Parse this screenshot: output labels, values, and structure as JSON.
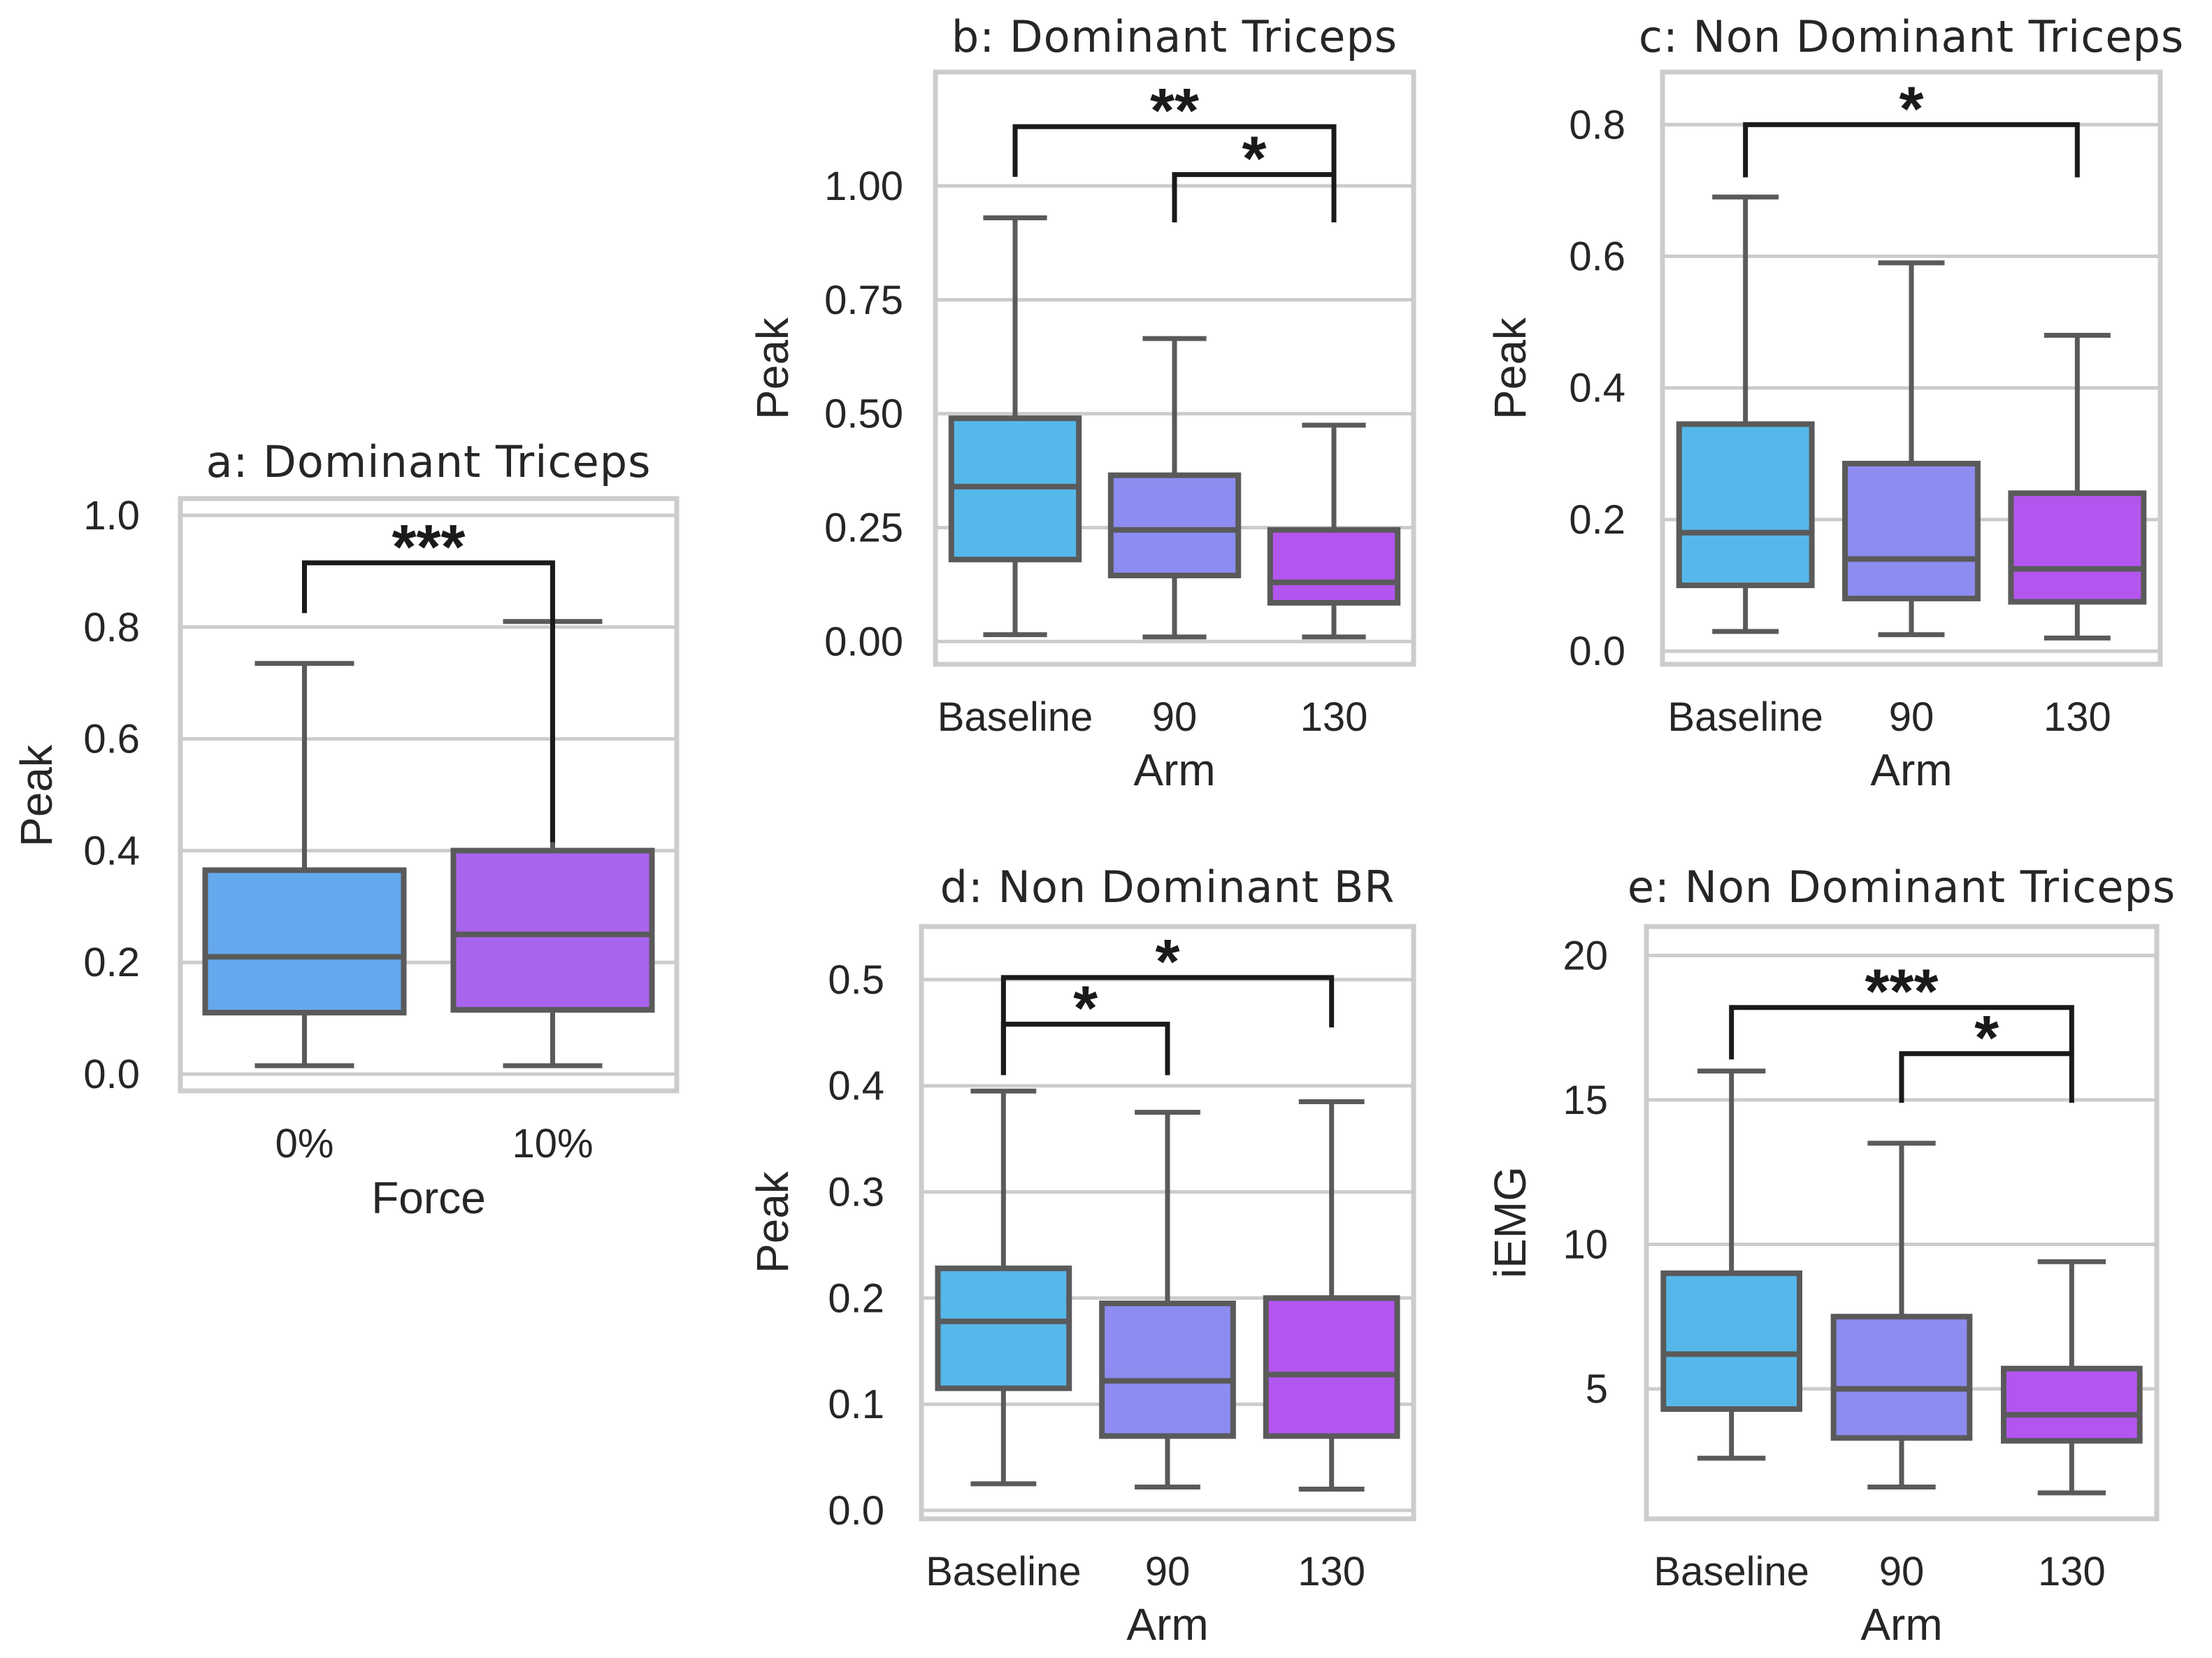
{
  "chart_data": [
    {
      "id": "a",
      "type": "box",
      "title": "a: Dominant Triceps",
      "xlabel": "Force",
      "ylabel": "Peak",
      "categories": [
        "0%",
        "10%"
      ],
      "colors": [
        "#64a8ee",
        "#a964ee"
      ],
      "ylim": [
        -0.03,
        1.03
      ],
      "yticks": [
        0.0,
        0.2,
        0.4,
        0.6,
        0.8,
        1.0
      ],
      "ytick_labels": [
        "0.0",
        "0.2",
        "0.4",
        "0.6",
        "0.8",
        "1.0"
      ],
      "boxes": [
        {
          "min": 0.015,
          "q1": 0.11,
          "median": 0.21,
          "q3": 0.365,
          "max": 0.735
        },
        {
          "min": 0.015,
          "q1": 0.115,
          "median": 0.25,
          "q3": 0.4,
          "max": 0.81
        }
      ],
      "significance": [
        {
          "from": 0,
          "to": 1,
          "label": "***",
          "y": 0.915,
          "left_end": 0.825,
          "right_end": 0.415
        }
      ]
    },
    {
      "id": "b",
      "type": "box",
      "title": "b: Dominant Triceps",
      "xlabel": "Arm",
      "ylabel": "Peak",
      "categories": [
        "Baseline",
        "90",
        "130"
      ],
      "colors": [
        "#56b8ea",
        "#8d8cf0",
        "#b356f0"
      ],
      "ylim": [
        -0.05,
        1.25
      ],
      "yticks": [
        0.0,
        0.25,
        0.5,
        0.75,
        1.0
      ],
      "ytick_labels": [
        "0.00",
        "0.25",
        "0.50",
        "0.75",
        "1.00"
      ],
      "boxes": [
        {
          "min": 0.015,
          "q1": 0.18,
          "median": 0.34,
          "q3": 0.49,
          "max": 0.93
        },
        {
          "min": 0.01,
          "q1": 0.145,
          "median": 0.245,
          "q3": 0.365,
          "max": 0.665
        },
        {
          "min": 0.01,
          "q1": 0.085,
          "median": 0.13,
          "q3": 0.245,
          "max": 0.475
        }
      ],
      "significance": [
        {
          "from": 0,
          "to": 2,
          "label": "**",
          "y": 1.13,
          "left_end": 1.02,
          "right_end": 0.92
        },
        {
          "from": 1,
          "to": 2,
          "label": "*",
          "y": 1.025,
          "left_end": 0.92,
          "right_end": 0.92
        }
      ]
    },
    {
      "id": "c",
      "type": "box",
      "title": "c: Non Dominant Triceps",
      "xlabel": "Arm",
      "ylabel": "Peak",
      "categories": [
        "Baseline",
        "90",
        "130"
      ],
      "colors": [
        "#56b8ea",
        "#8d8cf0",
        "#b356f0"
      ],
      "ylim": [
        -0.02,
        0.88
      ],
      "yticks": [
        0.0,
        0.2,
        0.4,
        0.6,
        0.8
      ],
      "ytick_labels": [
        "0.0",
        "0.2",
        "0.4",
        "0.6",
        "0.8"
      ],
      "boxes": [
        {
          "min": 0.03,
          "q1": 0.1,
          "median": 0.18,
          "q3": 0.345,
          "max": 0.69
        },
        {
          "min": 0.025,
          "q1": 0.08,
          "median": 0.14,
          "q3": 0.285,
          "max": 0.59
        },
        {
          "min": 0.02,
          "q1": 0.075,
          "median": 0.125,
          "q3": 0.24,
          "max": 0.48
        }
      ],
      "significance": [
        {
          "from": 0,
          "to": 2,
          "label": "*",
          "y": 0.8,
          "left_end": 0.72,
          "right_end": 0.72
        }
      ]
    },
    {
      "id": "d",
      "type": "box",
      "title": "d: Non Dominant BR",
      "xlabel": "Arm",
      "ylabel": "Peak",
      "categories": [
        "Baseline",
        "90",
        "130"
      ],
      "colors": [
        "#56b8ea",
        "#8d8cf0",
        "#b356f0"
      ],
      "ylim": [
        -0.008,
        0.55
      ],
      "yticks": [
        0.0,
        0.1,
        0.2,
        0.3,
        0.4,
        0.5
      ],
      "ytick_labels": [
        "0.0",
        "0.1",
        "0.2",
        "0.3",
        "0.4",
        "0.5"
      ],
      "boxes": [
        {
          "min": 0.025,
          "q1": 0.115,
          "median": 0.178,
          "q3": 0.228,
          "max": 0.395
        },
        {
          "min": 0.022,
          "q1": 0.07,
          "median": 0.122,
          "q3": 0.195,
          "max": 0.375
        },
        {
          "min": 0.02,
          "q1": 0.07,
          "median": 0.128,
          "q3": 0.2,
          "max": 0.385
        }
      ],
      "significance": [
        {
          "from": 0,
          "to": 2,
          "label": "*",
          "y": 0.502,
          "left_end": 0.41,
          "right_end": 0.455
        },
        {
          "from": 0,
          "to": 1,
          "label": "*",
          "y": 0.458,
          "left_end": 0.41,
          "right_end": 0.41
        }
      ]
    },
    {
      "id": "e",
      "type": "box",
      "title": "e: Non Dominant Triceps",
      "xlabel": "Arm",
      "ylabel": "iEMG",
      "categories": [
        "Baseline",
        "90",
        "130"
      ],
      "colors": [
        "#56b8ea",
        "#8d8cf0",
        "#b356f0"
      ],
      "ylim": [
        0.5,
        21.0
      ],
      "yticks": [
        5,
        10,
        15,
        20
      ],
      "ytick_labels": [
        "5",
        "10",
        "15",
        "20"
      ],
      "boxes": [
        {
          "min": 2.6,
          "q1": 4.3,
          "median": 6.2,
          "q3": 9.0,
          "max": 16.0
        },
        {
          "min": 1.6,
          "q1": 3.3,
          "median": 5.0,
          "q3": 7.5,
          "max": 13.5
        },
        {
          "min": 1.4,
          "q1": 3.2,
          "median": 4.1,
          "q3": 5.7,
          "max": 9.4
        }
      ],
      "significance": [
        {
          "from": 0,
          "to": 2,
          "label": "***",
          "y": 18.2,
          "left_end": 16.4,
          "right_end": 16.6
        },
        {
          "from": 1,
          "to": 2,
          "label": "*",
          "y": 16.6,
          "left_end": 14.9,
          "right_end": 14.9
        }
      ]
    }
  ]
}
